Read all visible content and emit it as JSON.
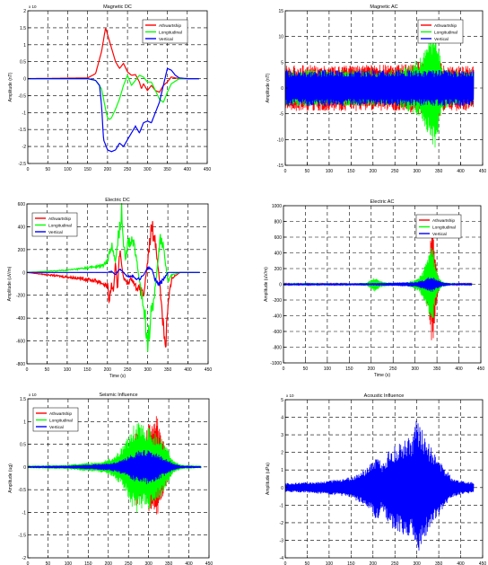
{
  "colors": {
    "red": "#ff0000",
    "green": "#00ff00",
    "blue": "#0000ff"
  },
  "chart_data": [
    {
      "title": "Magnetic DC",
      "type": "line",
      "xlabel": "",
      "ylabel": "Amplitude (nT)",
      "xlim": [
        0,
        450
      ],
      "ylim": [
        -2.5,
        2
      ],
      "exponent": "x 10",
      "xticks": [
        0,
        50,
        100,
        150,
        200,
        250,
        300,
        350,
        400,
        450
      ],
      "yticks": [
        -2.5,
        -2,
        -1.5,
        -1,
        -0.5,
        0,
        0.5,
        1,
        1.5,
        2
      ],
      "yticklabels": [
        "-2.5",
        "-2",
        "-1.5",
        "-1",
        "-0.5",
        "0",
        "0.5",
        "1",
        "1.5",
        "2"
      ],
      "grid": true,
      "legend_position": "top-right",
      "series": [
        {
          "name": "Athwartship",
          "color": "red",
          "x": [
            0,
            150,
            170,
            185,
            195,
            200,
            210,
            220,
            230,
            240,
            250,
            260,
            270,
            280,
            285,
            290,
            300,
            310,
            320,
            330,
            340,
            350,
            360,
            370,
            380,
            400,
            430
          ],
          "y": [
            0,
            0.02,
            0.15,
            0.8,
            1.5,
            1.3,
            0.9,
            0.5,
            0.3,
            0.45,
            0.2,
            0.1,
            0.12,
            -0.1,
            -0.3,
            -0.15,
            -0.35,
            -0.2,
            -0.35,
            -0.4,
            -0.2,
            -0.1,
            0.05,
            0.02,
            0,
            0,
            0
          ]
        },
        {
          "name": "Longitudinal",
          "color": "green",
          "x": [
            0,
            150,
            170,
            185,
            195,
            200,
            205,
            210,
            220,
            230,
            240,
            250,
            260,
            270,
            280,
            290,
            300,
            310,
            320,
            330,
            340,
            350,
            360,
            380,
            430
          ],
          "y": [
            0,
            0,
            -0.05,
            -0.3,
            -0.9,
            -1.15,
            -1.2,
            -1.15,
            -0.9,
            -0.6,
            -0.2,
            0.1,
            -0.2,
            -0.05,
            0.1,
            0.05,
            -0.1,
            -0.1,
            -0.35,
            -0.6,
            -0.7,
            -0.4,
            -0.15,
            0,
            0
          ]
        },
        {
          "name": "Vertical",
          "color": "blue",
          "x": [
            0,
            150,
            170,
            180,
            185,
            190,
            200,
            210,
            220,
            230,
            240,
            250,
            260,
            270,
            280,
            290,
            300,
            310,
            320,
            330,
            340,
            350,
            360,
            370,
            380,
            400,
            430
          ],
          "y": [
            0,
            0,
            -0.05,
            -0.2,
            -0.8,
            -1.8,
            -2.1,
            -2.15,
            -2.1,
            -1.9,
            -2.0,
            -1.8,
            -1.6,
            -1.4,
            -1.6,
            -1.3,
            -1.25,
            -1.3,
            -1.0,
            -0.7,
            -0.2,
            0.3,
            0.25,
            0.1,
            0.02,
            0,
            0
          ]
        }
      ]
    },
    {
      "title": "Magnetic AC",
      "type": "line",
      "xlabel": "",
      "ylabel": "Amplitude (nT)",
      "xlim": [
        0,
        450
      ],
      "ylim": [
        -15,
        15
      ],
      "xticks": [
        0,
        50,
        100,
        150,
        200,
        250,
        300,
        350,
        400,
        450
      ],
      "yticks": [
        -15,
        -10,
        -5,
        0,
        5,
        10,
        15
      ],
      "yticklabels": [
        "-15",
        "-10",
        "-5",
        "0",
        "5",
        "10",
        "15"
      ],
      "grid": true,
      "legend_position": "top-right",
      "series": [
        {
          "name": "Athwartship",
          "color": "red",
          "x": [
            0,
            50,
            100,
            150,
            200,
            250,
            300,
            320,
            340,
            350,
            360,
            380,
            400,
            430
          ],
          "y": [
            4.5,
            4.5,
            4.5,
            4.5,
            4.5,
            4.5,
            5,
            6,
            8,
            6,
            4.5,
            4.5,
            4.5,
            4.5
          ]
        },
        {
          "name": "Longitudinal",
          "color": "green",
          "x": [
            0,
            50,
            100,
            150,
            200,
            250,
            270,
            290,
            310,
            320,
            330,
            340,
            345,
            350,
            360,
            380,
            430
          ],
          "y": [
            3.5,
            3.5,
            3.5,
            3.5,
            3.5,
            3.5,
            4,
            5,
            6,
            8,
            10,
            12,
            11,
            8,
            4,
            3.5,
            3.5
          ]
        },
        {
          "name": "Vertical",
          "color": "blue",
          "x": [
            0,
            100,
            200,
            300,
            350,
            400,
            430
          ],
          "y": [
            3.5,
            3.5,
            3.5,
            3.5,
            3.5,
            3.5,
            3.5
          ]
        }
      ]
    },
    {
      "title": "Electric DC",
      "type": "line",
      "xlabel": "Time (s)",
      "ylabel": "Amplitude (uV/m)",
      "xlim": [
        0,
        450
      ],
      "ylim": [
        -800,
        600
      ],
      "xticks": [
        0,
        50,
        100,
        150,
        200,
        250,
        300,
        350,
        400,
        450
      ],
      "yticks": [
        -800,
        -600,
        -400,
        -200,
        0,
        200,
        400,
        600
      ],
      "yticklabels": [
        "-800",
        "-600",
        "-400",
        "-200",
        "0",
        "200",
        "400",
        "600"
      ],
      "grid": true,
      "legend_position": "top-left",
      "series": [
        {
          "name": "Athwartship",
          "color": "red",
          "x": [
            0,
            50,
            100,
            150,
            180,
            200,
            205,
            210,
            215,
            220,
            225,
            230,
            240,
            250,
            260,
            270,
            280,
            290,
            300,
            310,
            320,
            330,
            340,
            345,
            350,
            360,
            380,
            400,
            430
          ],
          "y": [
            0,
            -20,
            -40,
            -60,
            -80,
            -120,
            -250,
            -100,
            -200,
            100,
            -150,
            200,
            -50,
            -100,
            -50,
            -120,
            -150,
            -200,
            100,
            400,
            250,
            -100,
            -500,
            -600,
            -300,
            -50,
            0,
            0,
            0
          ]
        },
        {
          "name": "Longitudinal",
          "color": "green",
          "x": [
            0,
            50,
            100,
            150,
            190,
            200,
            210,
            220,
            230,
            235,
            240,
            245,
            250,
            260,
            270,
            280,
            290,
            300,
            310,
            320,
            330,
            340,
            350,
            360,
            380,
            430
          ],
          "y": [
            0,
            10,
            20,
            40,
            60,
            100,
            250,
            80,
            420,
            500,
            300,
            120,
            250,
            300,
            180,
            -100,
            -300,
            -560,
            -350,
            -100,
            300,
            200,
            -80,
            -20,
            0,
            0
          ]
        },
        {
          "name": "Vertical",
          "color": "blue",
          "x": [
            0,
            100,
            150,
            200,
            210,
            220,
            230,
            240,
            250,
            260,
            270,
            280,
            290,
            300,
            310,
            320,
            330,
            340,
            350,
            360,
            380,
            430
          ],
          "y": [
            0,
            0,
            0,
            0,
            10,
            -20,
            30,
            0,
            -40,
            -30,
            -50,
            -60,
            -20,
            40,
            30,
            -80,
            -100,
            -60,
            0,
            0,
            0,
            0
          ]
        }
      ]
    },
    {
      "title": "Electric AC",
      "type": "line",
      "xlabel": "Time (s)",
      "ylabel": "Amplitude (uV/m)",
      "xlim": [
        0,
        450
      ],
      "ylim": [
        -1000,
        1000
      ],
      "xticks": [
        0,
        50,
        100,
        150,
        200,
        250,
        300,
        350,
        400,
        450
      ],
      "yticks": [
        -1000,
        -800,
        -600,
        -400,
        -200,
        0,
        200,
        400,
        600,
        800,
        1000
      ],
      "yticklabels": [
        "-1000",
        "-800",
        "-600",
        "-400",
        "-200",
        "0",
        "200",
        "400",
        "600",
        "800",
        "1000"
      ],
      "grid": true,
      "legend_position": "top-right",
      "series": [
        {
          "name": "Athwartship",
          "color": "red",
          "x": [
            0,
            150,
            190,
            200,
            210,
            220,
            240,
            280,
            300,
            310,
            320,
            330,
            335,
            340,
            345,
            350,
            355,
            360,
            380,
            430
          ],
          "y": [
            10,
            10,
            15,
            40,
            60,
            30,
            15,
            15,
            20,
            40,
            80,
            300,
            600,
            850,
            500,
            200,
            60,
            20,
            10,
            10
          ]
        },
        {
          "name": "Longitudinal",
          "color": "green",
          "x": [
            0,
            150,
            190,
            200,
            210,
            220,
            240,
            280,
            300,
            310,
            320,
            330,
            335,
            340,
            345,
            350,
            360,
            380,
            430
          ],
          "y": [
            10,
            10,
            20,
            60,
            100,
            40,
            20,
            20,
            60,
            100,
            200,
            350,
            450,
            500,
            300,
            150,
            40,
            10,
            10
          ]
        },
        {
          "name": "Vertical",
          "color": "blue",
          "x": [
            0,
            100,
            200,
            300,
            320,
            330,
            340,
            350,
            360,
            380,
            430
          ],
          "y": [
            15,
            15,
            15,
            30,
            60,
            90,
            100,
            60,
            30,
            15,
            15
          ]
        }
      ]
    },
    {
      "title": "Seismic Influence",
      "type": "line",
      "xlabel": "Time (s)",
      "ylabel": "Amplitude (ug)",
      "xlim": [
        0,
        450
      ],
      "ylim": [
        -2,
        1.5
      ],
      "exponent": "x 10",
      "xticks": [
        0,
        50,
        100,
        150,
        200,
        250,
        300,
        350,
        400,
        450
      ],
      "yticks": [
        -2,
        -1.5,
        -1,
        -0.5,
        0,
        0.5,
        1,
        1.5
      ],
      "yticklabels": [
        "-2",
        "-1.5",
        "-1",
        "-0.5",
        "0",
        "0.5",
        "1",
        "1.5"
      ],
      "grid": true,
      "legend_position": "top-left",
      "series": [
        {
          "name": "Athwartship",
          "color": "red",
          "x": [
            0,
            100,
            150,
            180,
            200,
            210,
            220,
            240,
            250,
            260,
            270,
            280,
            290,
            300,
            310,
            320,
            330,
            340,
            350,
            360,
            380,
            430
          ],
          "y": [
            0.02,
            0.03,
            0.05,
            0.08,
            0.12,
            0.1,
            0.15,
            0.25,
            0.3,
            0.6,
            0.9,
            0.7,
            0.6,
            1.0,
            0.9,
            1.2,
            0.8,
            0.5,
            0.3,
            0.1,
            0.03,
            0.02
          ]
        },
        {
          "name": "Longitudinal",
          "color": "green",
          "x": [
            0,
            100,
            150,
            180,
            200,
            210,
            220,
            240,
            250,
            260,
            270,
            280,
            290,
            300,
            310,
            320,
            330,
            340,
            350,
            360,
            380,
            430
          ],
          "y": [
            0.03,
            0.05,
            0.1,
            0.12,
            0.18,
            0.2,
            0.3,
            0.5,
            0.7,
            0.9,
            1.0,
            1.0,
            0.9,
            0.95,
            0.8,
            0.75,
            0.7,
            0.5,
            0.35,
            0.15,
            0.05,
            0.03
          ]
        },
        {
          "name": "Vertical",
          "color": "blue",
          "x": [
            0,
            100,
            150,
            200,
            220,
            240,
            260,
            280,
            300,
            310,
            320,
            330,
            340,
            350,
            360,
            380,
            430
          ],
          "y": [
            0.02,
            0.03,
            0.05,
            0.08,
            0.12,
            0.18,
            0.3,
            0.38,
            0.4,
            0.35,
            0.3,
            0.25,
            0.2,
            0.15,
            0.08,
            0.03,
            0.02
          ]
        }
      ]
    },
    {
      "title": "Acoustic Influence",
      "type": "line",
      "xlabel": "Time (s)",
      "ylabel": "Amplitude (uPa)",
      "xlim": [
        0,
        450
      ],
      "ylim": [
        -4,
        5
      ],
      "exponent": "x 10",
      "xticks": [
        0,
        50,
        100,
        150,
        200,
        250,
        300,
        350,
        400,
        450
      ],
      "yticks": [
        -4,
        -3,
        -2,
        -1,
        0,
        1,
        2,
        3,
        4,
        5
      ],
      "yticklabels": [
        "-4",
        "-3",
        "-2",
        "-1",
        "0",
        "1",
        "2",
        "3",
        "4",
        "5"
      ],
      "grid": true,
      "series": [
        {
          "name": "",
          "color": "blue",
          "x": [
            0,
            50,
            100,
            150,
            180,
            200,
            210,
            220,
            240,
            260,
            280,
            290,
            300,
            310,
            320,
            340,
            360,
            380,
            400,
            430
          ],
          "y": [
            0.25,
            0.3,
            0.4,
            0.6,
            1.0,
            1.5,
            2.0,
            1.3,
            2.3,
            2.5,
            3.0,
            2.8,
            4.0,
            3.5,
            2.8,
            2.0,
            1.2,
            0.6,
            0.4,
            0.3
          ]
        }
      ]
    }
  ]
}
